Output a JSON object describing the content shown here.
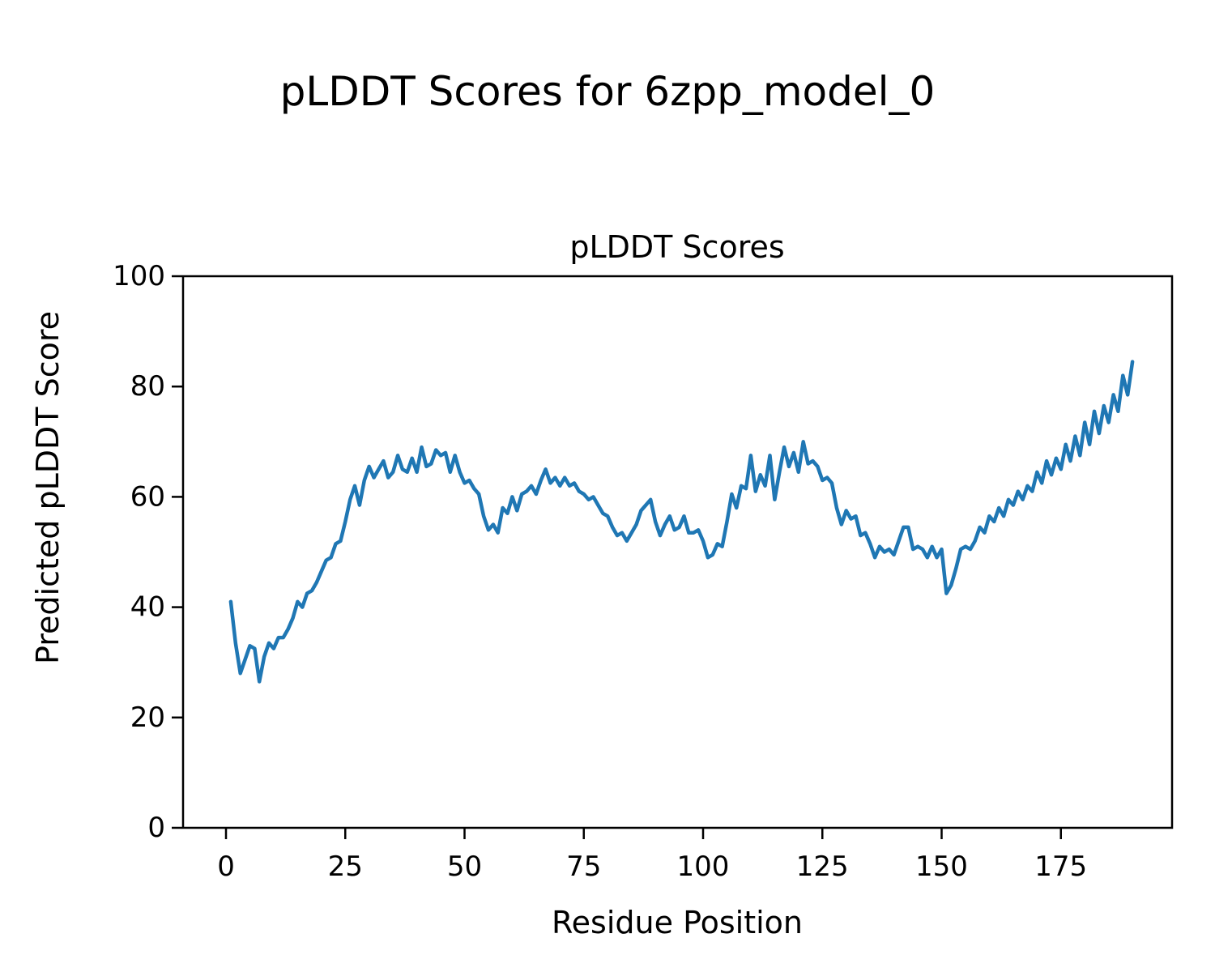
{
  "figure_title": "pLDDT Scores for 6zpp_model_0",
  "chart_data": {
    "type": "line",
    "title": "pLDDT Scores",
    "xlabel": "Residue Position",
    "ylabel": "Predicted pLDDT Score",
    "xlim": [
      -9,
      198.3
    ],
    "ylim": [
      0,
      100
    ],
    "xticks": [
      0,
      25,
      50,
      75,
      100,
      125,
      150,
      175
    ],
    "yticks": [
      0,
      20,
      40,
      60,
      80,
      100
    ],
    "grid": false,
    "legend": false,
    "background": "#ffffff",
    "axis_color": "#000000",
    "series": [
      {
        "name": "pLDDT",
        "color": "#1f77b4",
        "line_width": 4.5,
        "x": [
          1,
          2,
          3,
          4,
          5,
          6,
          7,
          8,
          9,
          10,
          11,
          12,
          13,
          14,
          15,
          16,
          17,
          18,
          19,
          20,
          21,
          22,
          23,
          24,
          25,
          26,
          27,
          28,
          29,
          30,
          31,
          32,
          33,
          34,
          35,
          36,
          37,
          38,
          39,
          40,
          41,
          42,
          43,
          44,
          45,
          46,
          47,
          48,
          49,
          50,
          51,
          52,
          53,
          54,
          55,
          56,
          57,
          58,
          59,
          60,
          61,
          62,
          63,
          64,
          65,
          66,
          67,
          68,
          69,
          70,
          71,
          72,
          73,
          74,
          75,
          76,
          77,
          78,
          79,
          80,
          81,
          82,
          83,
          84,
          85,
          86,
          87,
          88,
          89,
          90,
          91,
          92,
          93,
          94,
          95,
          96,
          97,
          98,
          99,
          100,
          101,
          102,
          103,
          104,
          105,
          106,
          107,
          108,
          109,
          110,
          111,
          112,
          113,
          114,
          115,
          116,
          117,
          118,
          119,
          120,
          121,
          122,
          123,
          124,
          125,
          126,
          127,
          128,
          129,
          130,
          131,
          132,
          133,
          134,
          135,
          136,
          137,
          138,
          139,
          140,
          141,
          142,
          143,
          144,
          145,
          146,
          147,
          148,
          149,
          150,
          151,
          152,
          153,
          154,
          155,
          156,
          157,
          158,
          159,
          160,
          161,
          162,
          163,
          164,
          165,
          166,
          167,
          168,
          169,
          170,
          171,
          172,
          173,
          174,
          175,
          176,
          177,
          178,
          179,
          180,
          181,
          182,
          183,
          184,
          185,
          186,
          187,
          188,
          189,
          190
        ],
        "y": [
          41,
          33.5,
          28,
          30.5,
          33,
          32.5,
          26.5,
          31,
          33.5,
          32.5,
          34.5,
          34.5,
          36,
          38,
          41,
          40,
          42.5,
          43,
          44.5,
          46.5,
          48.5,
          49,
          51.5,
          52,
          55.5,
          59.5,
          62,
          58.5,
          63,
          65.5,
          63.5,
          65,
          66.5,
          63.5,
          64.5,
          67.5,
          65,
          64.5,
          67,
          64.5,
          69,
          65.5,
          66,
          68.5,
          67.5,
          68,
          64.5,
          67.5,
          64.5,
          62.5,
          63,
          61.5,
          60.5,
          56.5,
          54,
          55,
          53.5,
          58,
          57,
          60,
          57.5,
          60.5,
          61,
          62,
          60.5,
          63,
          65,
          62.5,
          63.5,
          62,
          63.5,
          62,
          62.5,
          61,
          60.5,
          59.5,
          60,
          58.5,
          57,
          56.5,
          54.5,
          53,
          53.5,
          52,
          53.5,
          55,
          57.5,
          58.5,
          59.5,
          55.5,
          53,
          55,
          56.5,
          54,
          54.5,
          56.5,
          53.5,
          53.5,
          54,
          52,
          49,
          49.5,
          51.5,
          51,
          55.5,
          60.5,
          58,
          62,
          61.5,
          67.5,
          61,
          64,
          62,
          67.5,
          59.5,
          64.5,
          69,
          65.5,
          68,
          64.5,
          70,
          66,
          66.5,
          65.5,
          63,
          63.5,
          62.5,
          58,
          55,
          57.5,
          56,
          56.5,
          53,
          53.5,
          51.5,
          49,
          51,
          50,
          50.5,
          49.5,
          52,
          54.5,
          54.5,
          50.5,
          51,
          50.5,
          49,
          51,
          49,
          50.5,
          42.5,
          44,
          47,
          50.5,
          51,
          50.5,
          52,
          54.5,
          53.5,
          56.5,
          55.5,
          58,
          56.5,
          59.5,
          58.5,
          61,
          59.5,
          62,
          61,
          64.5,
          62.5,
          66.5,
          64,
          67,
          65,
          69.5,
          66.5,
          71,
          67.5,
          73.5,
          69.5,
          75.5,
          71.5,
          76.5,
          73.5,
          78.5,
          75.5,
          82,
          78.5,
          84.5
        ]
      }
    ]
  }
}
